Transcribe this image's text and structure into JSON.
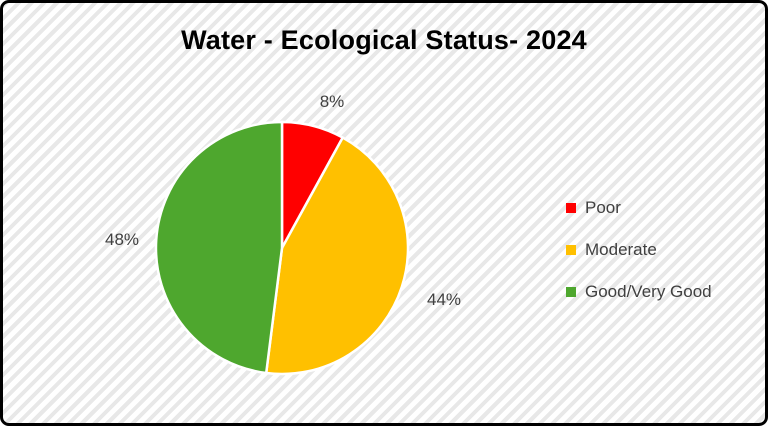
{
  "chart_data": {
    "type": "pie",
    "title": "Water - Ecological Status- 2024",
    "start_angle_deg": 0,
    "direction": "clockwise",
    "data_labels": "outside-percent",
    "legend_position": "right",
    "slices": [
      {
        "label": "Poor",
        "value": 8,
        "display": "8%",
        "color": "#FF0000"
      },
      {
        "label": "Moderate",
        "value": 44,
        "display": "44%",
        "color": "#FFC000"
      },
      {
        "label": "Good/Very Good",
        "value": 48,
        "display": "48%",
        "color": "#4EA72E"
      }
    ]
  },
  "style": {
    "label_text_color": "#404040",
    "title_color": "#000000",
    "background_stripe_color": "#e8e8e8",
    "background_base_color": "#ffffff",
    "frame_color": "#000000",
    "slice_separator_color": "#ffffff"
  }
}
